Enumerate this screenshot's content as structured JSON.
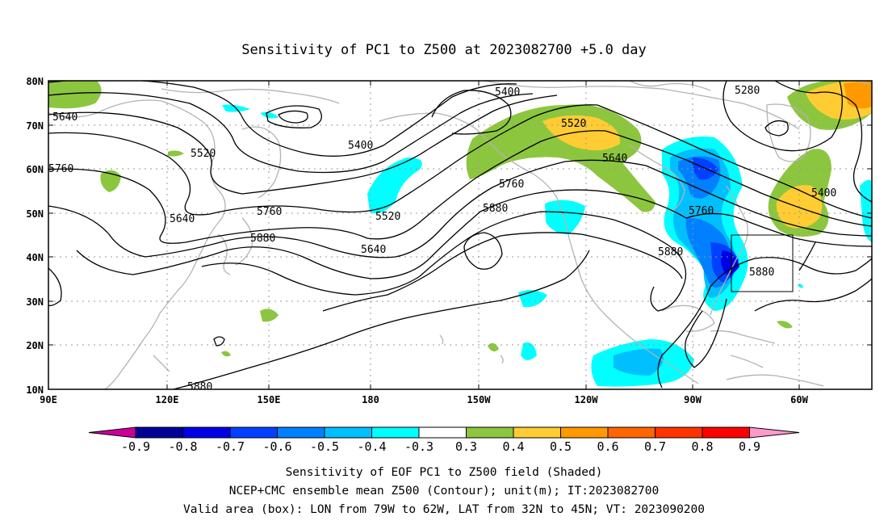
{
  "title": "Sensitivity of PC1 to Z500 at 2023082700 +5.0 day",
  "lat_labels": [
    "80N",
    "70N",
    "60N",
    "50N",
    "40N",
    "30N",
    "20N",
    "10N"
  ],
  "lon_labels": [
    "90E",
    "120E",
    "150E",
    "180",
    "150W",
    "120W",
    "90W",
    "60W"
  ],
  "contour_labels": {
    "c5640_w": "5640",
    "c5760_w": "5760",
    "c5520_w": "5520",
    "c5640_b": "5640",
    "c5760_m": "5760",
    "c5880_m": "5880",
    "c5400_c": "5400",
    "c5520_c": "5520",
    "c5640_c": "5640",
    "c5880_s": "5880",
    "c5400_t": "5400",
    "c5520_t": "5520",
    "c5760_t": "5760",
    "c5640_t": "5640",
    "c5880_e": "5880",
    "c5280": "5280",
    "c5760_e": "5760",
    "c5880_box": "5880",
    "c5400_e": "5400"
  },
  "colorbar": {
    "labels": [
      "-0.9",
      "-0.8",
      "-0.7",
      "-0.6",
      "-0.5",
      "-0.4",
      "-0.3",
      "0.3",
      "0.4",
      "0.5",
      "0.6",
      "0.7",
      "0.8",
      "0.9"
    ],
    "colors": [
      "#000099",
      "#0000e6",
      "#0040ff",
      "#0080ff",
      "#00bfff",
      "#00ffff",
      "#ffffff",
      "#8cc63f",
      "#ffcc33",
      "#ff9900",
      "#ff6600",
      "#ff3300",
      "#ff0000"
    ],
    "low_end_color": "#cc0099",
    "high_end_color": "#ff99cc"
  },
  "caption": {
    "line1": "Sensitivity of EOF PC1 to Z500 field (Shaded)",
    "line2": "NCEP+CMC ensemble mean Z500 (Contour); unit(m); IT:2023082700",
    "line3": "Valid area (box): LON from 79W to 62W, LAT from 32N to 45N; VT: 2023090200"
  }
}
